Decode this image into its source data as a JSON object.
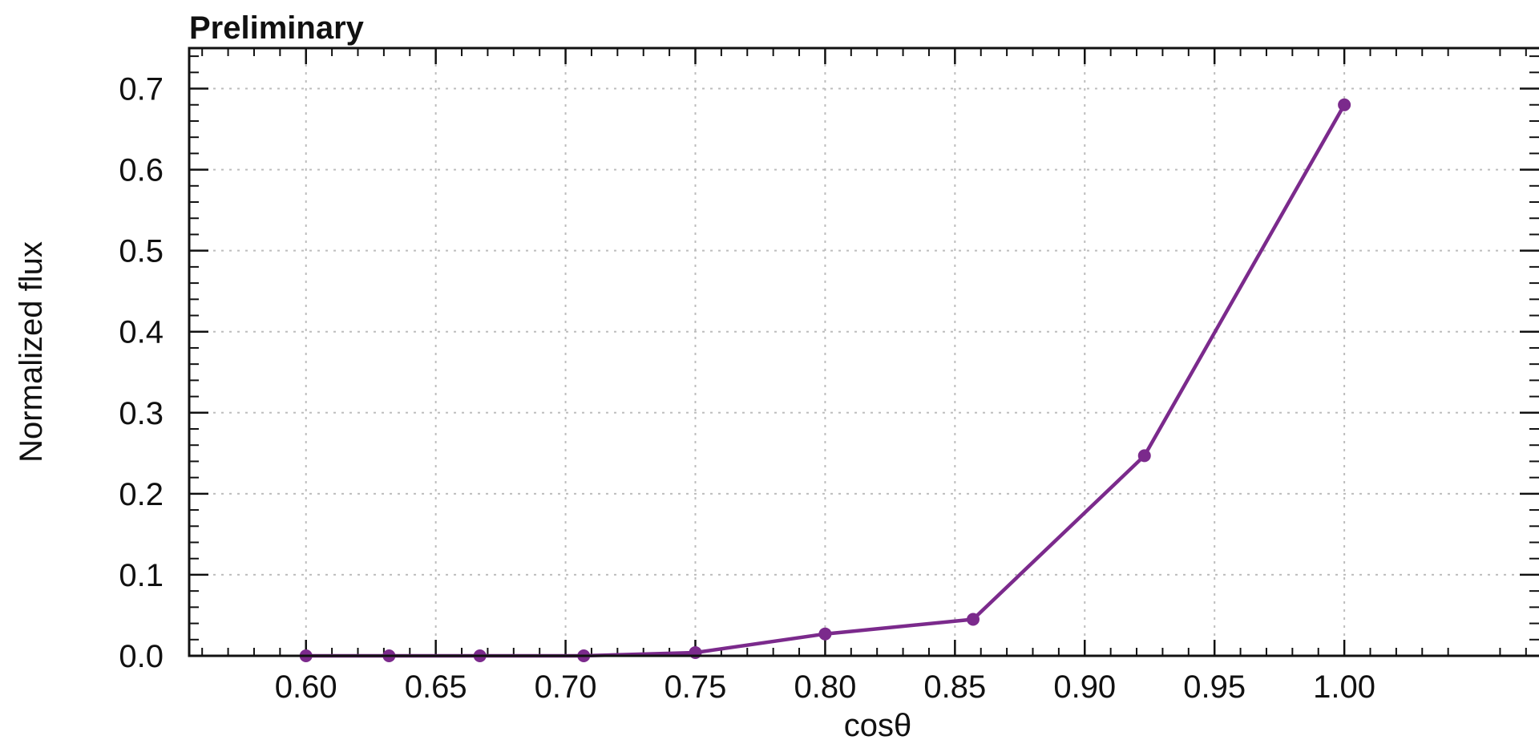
{
  "chart_data": {
    "type": "line",
    "title": "Preliminary",
    "xlabel": "cosθ",
    "ylabel": "Normalized flux",
    "xlim": [
      0.555,
      1.075
    ],
    "ylim": [
      0.0,
      0.75
    ],
    "x_ticks": [
      "0.60",
      "0.65",
      "0.70",
      "0.75",
      "0.80",
      "0.85",
      "0.90",
      "0.95",
      "1.00"
    ],
    "y_ticks": [
      "0.0",
      "0.1",
      "0.2",
      "0.3",
      "0.4",
      "0.5",
      "0.6",
      "0.7"
    ],
    "grid": true,
    "series": [
      {
        "color": "#7b2a8c",
        "x": [
          0.6,
          0.632,
          0.667,
          0.707,
          0.75,
          0.8,
          0.857,
          0.923,
          1.0
        ],
        "y": [
          0.0,
          0.0,
          0.0,
          0.0,
          0.004,
          0.027,
          0.045,
          0.247,
          0.68
        ]
      }
    ]
  }
}
